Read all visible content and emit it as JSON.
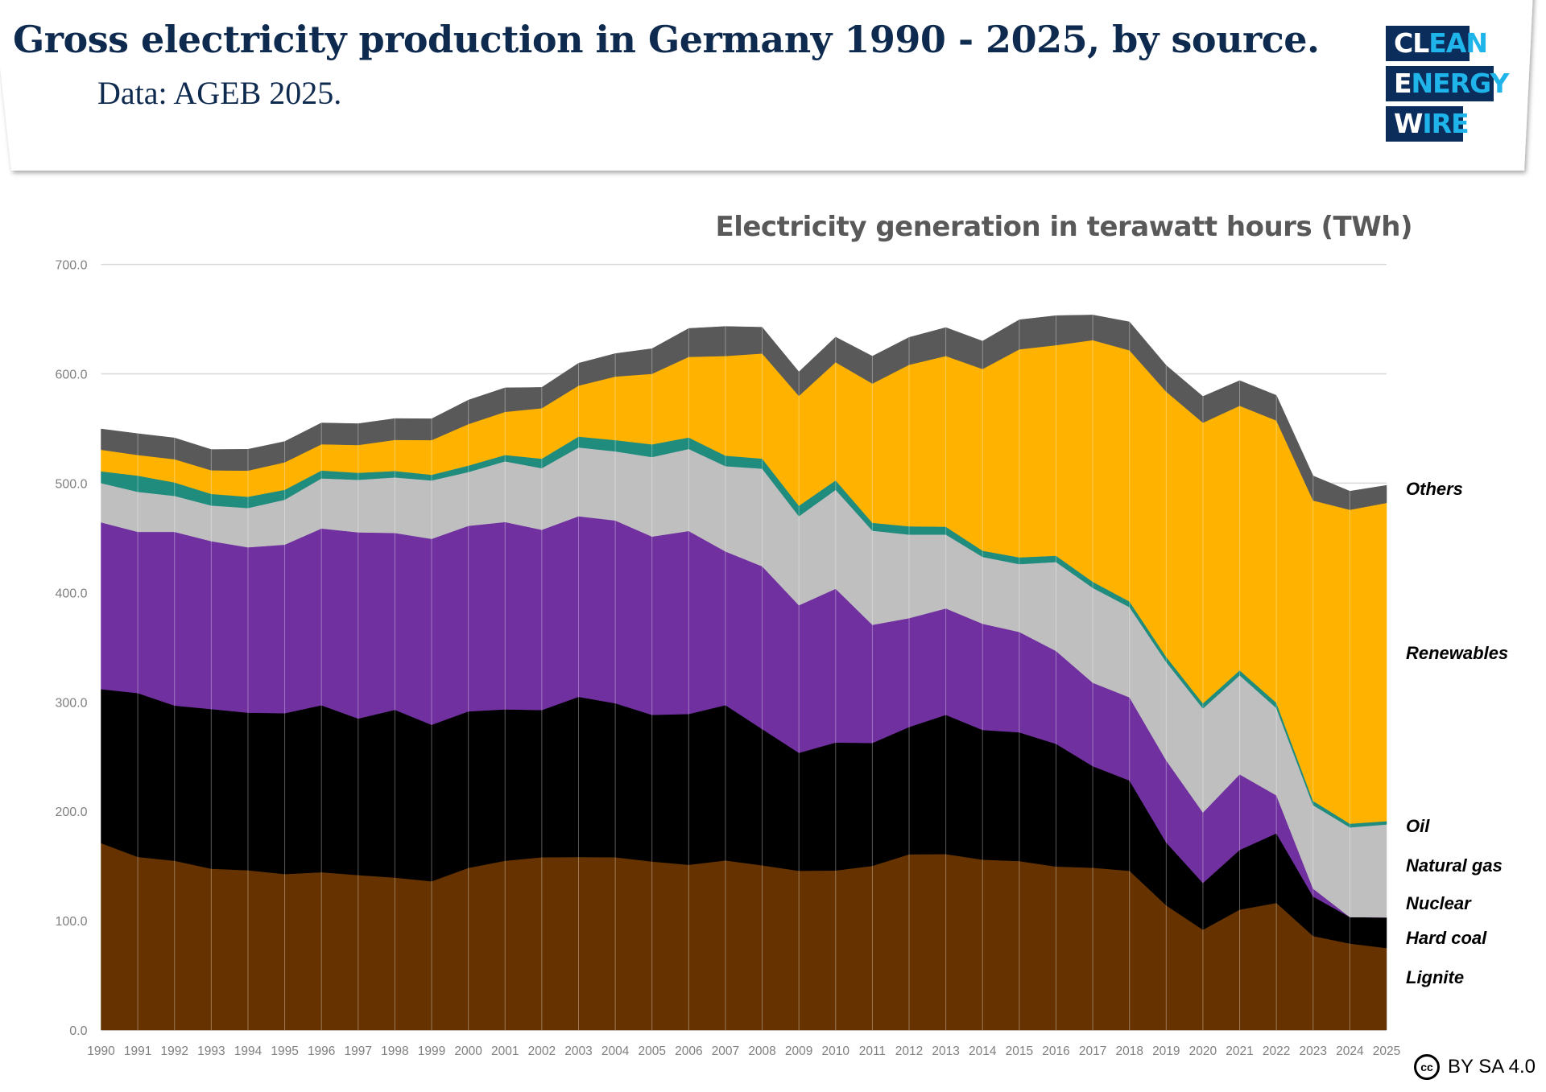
{
  "header": {
    "title": "Gross electricity production in Germany 1990 - 2025, by source.",
    "subtitle": "Data: AGEB 2025."
  },
  "logo": {
    "lines": [
      [
        "CL",
        "EAN"
      ],
      [
        "E",
        "NERGY"
      ],
      [
        "W",
        "IRE"
      ]
    ],
    "text": "CLEAN ENERGY WIRE"
  },
  "license": {
    "icon": "creative-commons-icon",
    "cc": "cc",
    "text": "BY SA 4.0"
  },
  "chart_data": {
    "type": "area",
    "stacked": true,
    "title": "Electricity generation in terawatt hours (TWh)",
    "xlabel": "",
    "ylabel": "",
    "ylim": [
      0,
      700
    ],
    "yticks": [
      "0.0",
      "100.0",
      "200.0",
      "300.0",
      "400.0",
      "500.0",
      "600.0",
      "700.0"
    ],
    "grid": true,
    "legend": "right, inline labels",
    "x": [
      1990,
      1991,
      1992,
      1993,
      1994,
      1995,
      1996,
      1997,
      1998,
      1999,
      2000,
      2001,
      2002,
      2003,
      2004,
      2005,
      2006,
      2007,
      2008,
      2009,
      2010,
      2011,
      2012,
      2013,
      2014,
      2015,
      2016,
      2017,
      2018,
      2019,
      2020,
      2021,
      2022,
      2023,
      2024,
      2025
    ],
    "series": [
      {
        "name": "Lignite",
        "color": "#663300",
        "values": [
          170.9,
          158.3,
          154.8,
          147.5,
          146.1,
          142.6,
          144.3,
          141.7,
          139.4,
          136.0,
          148.3,
          154.8,
          158.0,
          158.2,
          158.0,
          154.1,
          151.1,
          155.1,
          150.6,
          145.6,
          145.9,
          150.1,
          160.7,
          160.9,
          155.8,
          154.5,
          149.5,
          148.4,
          145.6,
          114.0,
          91.7,
          110.1,
          116.2,
          86.0,
          79.1,
          75.0
        ]
      },
      {
        "name": "Hard coal",
        "color": "#000000",
        "values": [
          140.8,
          149.8,
          141.9,
          146.0,
          144.1,
          147.1,
          152.7,
          143.1,
          153.4,
          143.1,
          143.1,
          138.4,
          134.6,
          146.5,
          140.8,
          134.1,
          137.9,
          142.0,
          124.6,
          107.9,
          117.0,
          112.4,
          116.4,
          127.3,
          118.6,
          117.7,
          112.2,
          92.9,
          82.6,
          57.5,
          42.8,
          54.6,
          63.7,
          36.1,
          24.2,
          28.0
        ]
      },
      {
        "name": "Nuclear",
        "color": "#7030A0",
        "values": [
          152.5,
          147.4,
          158.8,
          153.5,
          151.2,
          154.1,
          161.6,
          170.3,
          161.7,
          170.0,
          169.6,
          171.3,
          164.8,
          165.1,
          167.1,
          163.0,
          167.3,
          140.5,
          148.8,
          134.9,
          140.6,
          108.0,
          99.5,
          97.3,
          97.1,
          91.8,
          84.9,
          76.3,
          76.0,
          75.1,
          64.4,
          69.1,
          34.7,
          7.2,
          0,
          0
        ]
      },
      {
        "name": "Natural gas",
        "color": "#BFBFBF",
        "values": [
          35.9,
          36.6,
          32.9,
          32.6,
          35.9,
          41.1,
          45.8,
          48.0,
          50.8,
          53.4,
          49.2,
          55.5,
          56.3,
          62.9,
          63.2,
          72.7,
          75.0,
          78.0,
          89.3,
          81.4,
          90.4,
          86.1,
          76.4,
          67.5,
          61.1,
          62.0,
          81.3,
          86.7,
          82.5,
          89.9,
          95.1,
          90.5,
          79.8,
          76.3,
          82.0,
          85.0
        ]
      },
      {
        "name": "Oil",
        "color": "#1F8C7E",
        "values": [
          10.8,
          14.8,
          12.3,
          10.6,
          10.3,
          9.1,
          7.2,
          6.4,
          5.9,
          5.2,
          5.9,
          5.8,
          8.7,
          9.9,
          10.3,
          11.6,
          10.5,
          9.6,
          9.2,
          9.6,
          8.7,
          7.2,
          7.6,
          7.2,
          5.7,
          6.2,
          5.8,
          5.6,
          5.2,
          4.8,
          4.7,
          4.6,
          4.9,
          3.9,
          3.4,
          3.0
        ]
      },
      {
        "name": "Renewables",
        "color": "#FFB300",
        "values": [
          19.7,
          18.9,
          21.2,
          21.6,
          23.9,
          25.1,
          24.0,
          25.4,
          28.4,
          31.7,
          37.9,
          39.4,
          46.2,
          46.6,
          58.1,
          64.5,
          73.7,
          91.1,
          96.1,
          100.4,
          108.0,
          127.3,
          147.7,
          156.1,
          166.1,
          190.2,
          192.5,
          220.9,
          229.6,
          242.4,
          256.6,
          241.9,
          258.0,
          274.7,
          287.0,
          291.0
        ]
      },
      {
        "name": "Others",
        "color": "#595959",
        "values": [
          19.0,
          19.5,
          19.5,
          19.0,
          19.5,
          19.0,
          19.5,
          19.5,
          19.5,
          19.5,
          22.0,
          22.0,
          19.0,
          20.5,
          21.0,
          23.0,
          26.0,
          27.0,
          24.0,
          22.0,
          23.0,
          25.0,
          25.0,
          26.0,
          25.5,
          27.0,
          27.0,
          23.0,
          26.0,
          24.0,
          24.0,
          23.0,
          23.0,
          22.5,
          17.0,
          16.0
        ]
      }
    ]
  }
}
